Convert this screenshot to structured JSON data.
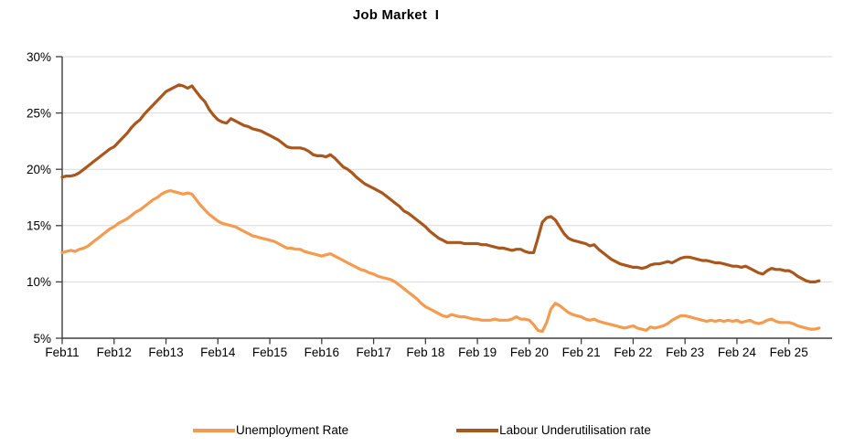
{
  "title": "Job Market  I",
  "colors": {
    "unemployment_line": "#F49B50",
    "underutilisation_line": "#A9571C",
    "gridline": "#D9D9D9",
    "axis": "#3f3f3f",
    "text": "#000000",
    "background": "#ffffff"
  },
  "legend": [
    {
      "label": "Unemployment Rate",
      "color": "#F49B50"
    },
    {
      "label": "Labour Underutilisation rate",
      "color": "#A9571C"
    }
  ],
  "chart_data": {
    "type": "line",
    "title": "Job Market  I",
    "x_start": "Feb 2011",
    "x_frequency": "monthly",
    "x_tick_labels": [
      "Feb11",
      "Feb12",
      "Feb13",
      "Feb14",
      "Feb15",
      "Feb16",
      "Feb17",
      "Feb 18",
      "Feb 19",
      "Feb 20",
      "Feb 21",
      "Feb 22",
      "Feb 23",
      "Feb 24",
      "Feb 25"
    ],
    "x_tick_interval_months": 12,
    "x_axis_extent_months": 178,
    "y_ticks": [
      5,
      10,
      15,
      20,
      25,
      30
    ],
    "y_tick_labels": [
      "5%",
      "10%",
      "15%",
      "20%",
      "25%",
      "30%"
    ],
    "ylim": [
      5,
      30
    ],
    "grid": "horizontal",
    "legend_position": "bottom",
    "series": [
      {
        "name": "Unemployment Rate",
        "color": "#F49B50",
        "values": [
          12.6,
          12.7,
          12.8,
          12.7,
          12.9,
          13.0,
          13.2,
          13.5,
          13.8,
          14.1,
          14.4,
          14.7,
          14.9,
          15.2,
          15.4,
          15.6,
          15.9,
          16.2,
          16.4,
          16.7,
          17.0,
          17.3,
          17.5,
          17.8,
          18.0,
          18.1,
          18.0,
          17.9,
          17.8,
          17.9,
          17.8,
          17.3,
          16.8,
          16.4,
          16.0,
          15.7,
          15.4,
          15.2,
          15.1,
          15.0,
          14.9,
          14.7,
          14.5,
          14.3,
          14.1,
          14.0,
          13.9,
          13.8,
          13.7,
          13.6,
          13.4,
          13.2,
          13.0,
          13.0,
          12.9,
          12.9,
          12.7,
          12.6,
          12.5,
          12.4,
          12.3,
          12.4,
          12.5,
          12.3,
          12.1,
          11.9,
          11.7,
          11.5,
          11.3,
          11.1,
          11.0,
          10.8,
          10.7,
          10.5,
          10.4,
          10.3,
          10.2,
          10.0,
          9.7,
          9.4,
          9.1,
          8.8,
          8.5,
          8.1,
          7.8,
          7.6,
          7.4,
          7.2,
          7.0,
          6.9,
          7.1,
          7.0,
          6.9,
          6.9,
          6.8,
          6.7,
          6.7,
          6.6,
          6.6,
          6.6,
          6.7,
          6.6,
          6.6,
          6.6,
          6.7,
          6.9,
          6.7,
          6.7,
          6.6,
          6.2,
          5.7,
          5.6,
          6.4,
          7.6,
          8.1,
          7.9,
          7.6,
          7.3,
          7.1,
          7.0,
          6.9,
          6.7,
          6.6,
          6.7,
          6.5,
          6.4,
          6.3,
          6.2,
          6.1,
          6.0,
          5.9,
          6.0,
          6.1,
          5.9,
          5.8,
          5.7,
          6.0,
          5.9,
          6.0,
          6.1,
          6.3,
          6.6,
          6.8,
          7.0,
          7.0,
          6.9,
          6.8,
          6.7,
          6.6,
          6.5,
          6.6,
          6.5,
          6.6,
          6.5,
          6.6,
          6.5,
          6.6,
          6.4,
          6.5,
          6.6,
          6.4,
          6.3,
          6.4,
          6.6,
          6.7,
          6.5,
          6.4,
          6.4,
          6.4,
          6.3,
          6.1,
          6.0,
          5.9,
          5.8,
          5.8,
          5.9
        ]
      },
      {
        "name": "Labour Underutilisation rate",
        "color": "#A9571C",
        "values": [
          19.3,
          19.4,
          19.4,
          19.5,
          19.7,
          20.0,
          20.3,
          20.6,
          20.9,
          21.2,
          21.5,
          21.8,
          22.0,
          22.4,
          22.8,
          23.2,
          23.7,
          24.1,
          24.4,
          24.9,
          25.3,
          25.7,
          26.1,
          26.5,
          26.9,
          27.1,
          27.3,
          27.5,
          27.4,
          27.2,
          27.4,
          26.9,
          26.4,
          26.0,
          25.3,
          24.8,
          24.4,
          24.2,
          24.1,
          24.5,
          24.3,
          24.1,
          23.9,
          23.8,
          23.6,
          23.5,
          23.4,
          23.2,
          23.0,
          22.8,
          22.6,
          22.3,
          22.0,
          21.9,
          21.9,
          21.9,
          21.8,
          21.6,
          21.3,
          21.2,
          21.2,
          21.1,
          21.3,
          21.0,
          20.6,
          20.2,
          20.0,
          19.7,
          19.3,
          19.0,
          18.7,
          18.5,
          18.3,
          18.1,
          17.9,
          17.6,
          17.3,
          17.0,
          16.7,
          16.3,
          16.1,
          15.8,
          15.5,
          15.2,
          14.9,
          14.5,
          14.2,
          13.9,
          13.7,
          13.5,
          13.5,
          13.5,
          13.5,
          13.4,
          13.4,
          13.4,
          13.4,
          13.3,
          13.3,
          13.2,
          13.1,
          13.0,
          13.0,
          12.9,
          12.8,
          12.9,
          12.9,
          12.7,
          12.6,
          12.6,
          13.9,
          15.3,
          15.7,
          15.8,
          15.5,
          14.9,
          14.3,
          13.9,
          13.7,
          13.6,
          13.5,
          13.4,
          13.2,
          13.3,
          12.9,
          12.6,
          12.3,
          12.0,
          11.8,
          11.6,
          11.5,
          11.4,
          11.3,
          11.3,
          11.2,
          11.3,
          11.5,
          11.6,
          11.6,
          11.7,
          11.8,
          11.7,
          11.9,
          12.1,
          12.2,
          12.2,
          12.1,
          12.0,
          11.9,
          11.9,
          11.8,
          11.7,
          11.7,
          11.6,
          11.5,
          11.4,
          11.4,
          11.3,
          11.4,
          11.2,
          11.0,
          10.8,
          10.7,
          11.0,
          11.2,
          11.1,
          11.1,
          11.0,
          11.0,
          10.8,
          10.5,
          10.3,
          10.1,
          10.0,
          10.0,
          10.1
        ]
      }
    ]
  }
}
